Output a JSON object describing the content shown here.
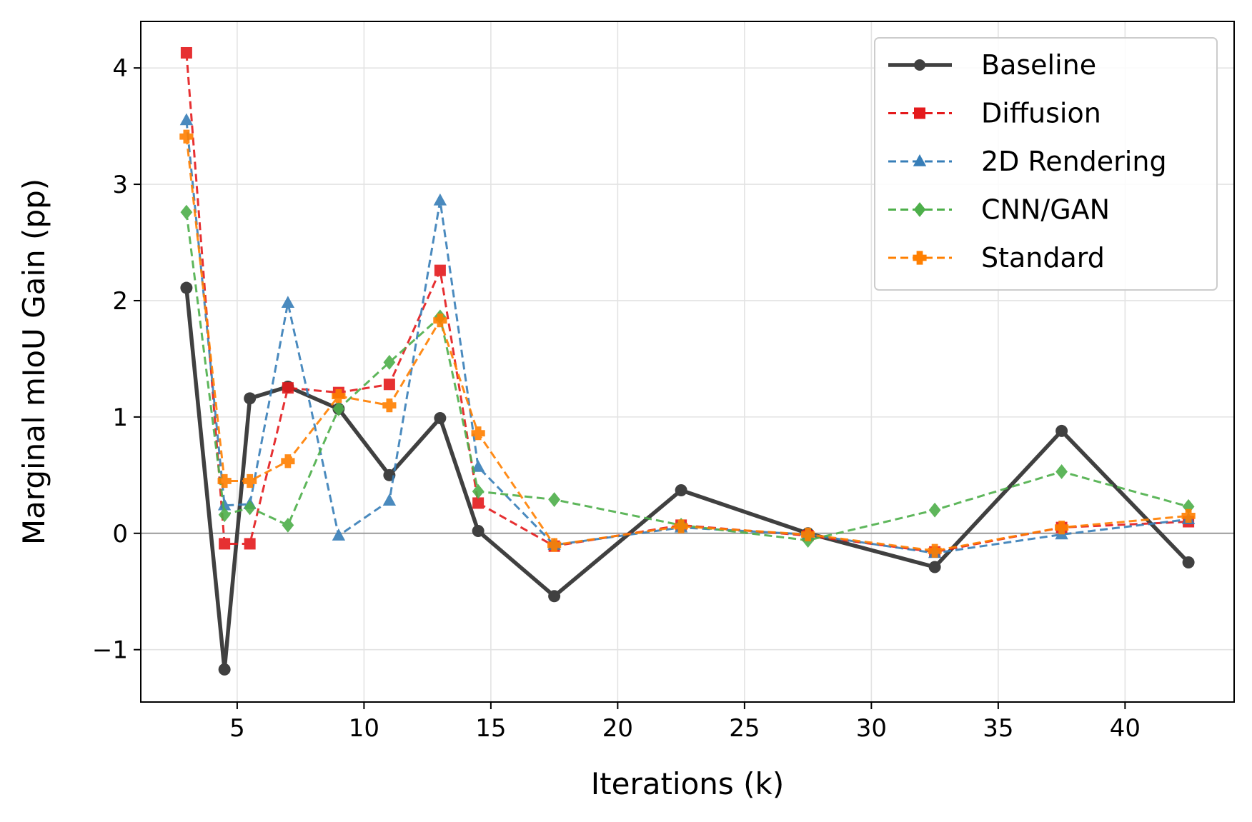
{
  "chart_data": {
    "type": "line",
    "title": "",
    "xlabel": "Iterations (k)",
    "ylabel": "Marginal mIoU Gain (pp)",
    "xlim": [
      1.2,
      44.3
    ],
    "ylim": [
      -1.45,
      4.4
    ],
    "xticks": [
      5,
      10,
      15,
      20,
      25,
      30,
      35,
      40
    ],
    "yticks": [
      -1,
      0,
      1,
      2,
      3,
      4
    ],
    "xtick_labels": [
      "5",
      "10",
      "15",
      "20",
      "25",
      "30",
      "35",
      "40"
    ],
    "ytick_labels": [
      "−1",
      "0",
      "1",
      "2",
      "3",
      "4"
    ],
    "grid": true,
    "zero_line": true,
    "legend_position": "top-right",
    "x": [
      3,
      4.5,
      5.5,
      7,
      9,
      11,
      13,
      14.5,
      17.5,
      22.5,
      27.5,
      32.5,
      37.5,
      42.5
    ],
    "series": [
      {
        "name": "Baseline",
        "color": "#404040",
        "marker": "circle",
        "dashed": false,
        "values": [
          2.11,
          -1.17,
          1.16,
          1.26,
          1.07,
          0.5,
          0.99,
          0.02,
          -0.54,
          0.37,
          0.0,
          -0.29,
          0.88,
          -0.25
        ]
      },
      {
        "name": "Diffusion",
        "color": "#e41a1c",
        "marker": "square",
        "dashed": true,
        "values": [
          4.13,
          -0.09,
          -0.09,
          1.25,
          1.21,
          1.28,
          2.26,
          0.26,
          -0.11,
          0.07,
          -0.02,
          -0.16,
          0.05,
          0.1
        ]
      },
      {
        "name": "2D Rendering",
        "color": "#377eb8",
        "marker": "triangle",
        "dashed": true,
        "values": [
          3.55,
          0.24,
          0.25,
          1.98,
          -0.02,
          0.28,
          2.86,
          0.57,
          -0.1,
          0.05,
          -0.01,
          -0.17,
          -0.01,
          0.12
        ]
      },
      {
        "name": "CNN/GAN",
        "color": "#4daf4a",
        "marker": "diamond",
        "dashed": true,
        "values": [
          2.76,
          0.16,
          0.22,
          0.07,
          1.07,
          1.47,
          1.86,
          0.36,
          0.29,
          0.07,
          -0.06,
          0.2,
          0.53,
          0.23
        ]
      },
      {
        "name": "Standard",
        "color": "#ff7f00",
        "marker": "plus",
        "dashed": true,
        "values": [
          3.41,
          0.45,
          0.45,
          0.62,
          1.18,
          1.1,
          1.83,
          0.86,
          -0.1,
          0.06,
          -0.01,
          -0.15,
          0.05,
          0.15
        ]
      }
    ]
  }
}
